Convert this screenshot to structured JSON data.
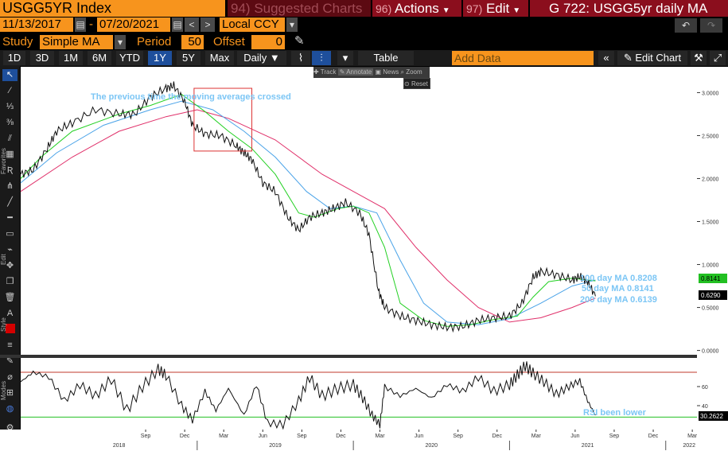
{
  "header": {
    "ticker": "USGG5YR Index",
    "suggested_num": "94)",
    "suggested_label": "Suggested Charts",
    "actions_num": "96)",
    "actions_label": "Actions",
    "edit_num": "97)",
    "edit_label": "Edit",
    "chart_title": "G 722: USGG5yr daily MA"
  },
  "date_range": {
    "start": "11/13/2017",
    "end": "07/20/2021",
    "currency": "Local CCY"
  },
  "study": {
    "label": "Study",
    "value": "Simple MA",
    "period_label": "Period",
    "period": "50",
    "offset_label": "Offset",
    "offset": "0"
  },
  "range_buttons": [
    "1D",
    "3D",
    "1M",
    "6M",
    "YTD",
    "1Y",
    "5Y",
    "Max"
  ],
  "active_range": "1Y",
  "frequency": "Daily",
  "table_label": "Table",
  "add_data_placeholder": "Add Data",
  "edit_chart_label": "Edit Chart",
  "mini_tools": {
    "track": "Track",
    "annotate": "Annotate",
    "news": "News",
    "zoom": "Zoom",
    "reset": "Reset"
  },
  "side_labels": {
    "favorites": "Favorites",
    "edit": "Edit",
    "style": "Style",
    "modes": "Modes"
  },
  "colors": {
    "price": "#ffffff",
    "ma50": "#22d022",
    "ma100": "#4aa3e8",
    "ma200": "#e0306a",
    "rsi": "#ffffff",
    "rsi_upper": "#c0392b",
    "rsi_lower": "#22c022",
    "annotation": "#7cc6f5",
    "box": "#d33"
  },
  "chart_data": [
    {
      "type": "line",
      "x_ticks": [
        "Sep",
        "Dec",
        "Mar",
        "Jun",
        "Sep",
        "Dec",
        "Mar",
        "Jun",
        "Sep",
        "Dec",
        "Mar",
        "Jun",
        "Sep",
        "Dec",
        "Mar"
      ],
      "x_years": [
        "2018",
        "2019",
        "2020",
        "2021",
        "2022"
      ],
      "y_ticks": [
        "3.0000",
        "2.5000",
        "2.0000",
        "1.5000",
        "1.0000",
        "0.5000",
        "0.0000"
      ],
      "ylim": [
        -0.05,
        3.3
      ],
      "series": [
        {
          "name": "USGG5YR",
          "last_value": "0.6290",
          "points": [
            [
              2017.87,
              2.05
            ],
            [
              2017.95,
              2.1
            ],
            [
              2018.04,
              2.35
            ],
            [
              2018.1,
              2.55
            ],
            [
              2018.2,
              2.65
            ],
            [
              2018.35,
              2.8
            ],
            [
              2018.5,
              2.75
            ],
            [
              2018.6,
              2.75
            ],
            [
              2018.7,
              2.95
            ],
            [
              2018.8,
              3.05
            ],
            [
              2018.85,
              3.08
            ],
            [
              2018.92,
              2.9
            ],
            [
              2018.97,
              2.62
            ],
            [
              2019.05,
              2.52
            ],
            [
              2019.15,
              2.5
            ],
            [
              2019.25,
              2.38
            ],
            [
              2019.3,
              2.3
            ],
            [
              2019.35,
              2.22
            ],
            [
              2019.42,
              1.95
            ],
            [
              2019.5,
              1.85
            ],
            [
              2019.58,
              1.55
            ],
            [
              2019.65,
              1.4
            ],
            [
              2019.72,
              1.55
            ],
            [
              2019.8,
              1.6
            ],
            [
              2019.87,
              1.65
            ],
            [
              2019.95,
              1.72
            ],
            [
              2020.04,
              1.6
            ],
            [
              2020.1,
              1.35
            ],
            [
              2020.16,
              0.7
            ],
            [
              2020.2,
              0.5
            ],
            [
              2020.3,
              0.4
            ],
            [
              2020.4,
              0.35
            ],
            [
              2020.5,
              0.3
            ],
            [
              2020.6,
              0.27
            ],
            [
              2020.7,
              0.28
            ],
            [
              2020.8,
              0.35
            ],
            [
              2020.9,
              0.38
            ],
            [
              2021.0,
              0.4
            ],
            [
              2021.08,
              0.55
            ],
            [
              2021.15,
              0.85
            ],
            [
              2021.2,
              0.92
            ],
            [
              2021.3,
              0.88
            ],
            [
              2021.4,
              0.82
            ],
            [
              2021.45,
              0.86
            ],
            [
              2021.5,
              0.8
            ],
            [
              2021.55,
              0.63
            ]
          ]
        },
        {
          "name": "50 day MA",
          "last_value": "0.8141",
          "points": [
            [
              2017.87,
              2.0
            ],
            [
              2018.0,
              2.25
            ],
            [
              2018.2,
              2.55
            ],
            [
              2018.5,
              2.75
            ],
            [
              2018.7,
              2.85
            ],
            [
              2018.9,
              2.98
            ],
            [
              2019.05,
              2.78
            ],
            [
              2019.2,
              2.55
            ],
            [
              2019.35,
              2.35
            ],
            [
              2019.5,
              2.05
            ],
            [
              2019.65,
              1.6
            ],
            [
              2019.75,
              1.55
            ],
            [
              2019.9,
              1.65
            ],
            [
              2020.0,
              1.68
            ],
            [
              2020.1,
              1.6
            ],
            [
              2020.2,
              1.2
            ],
            [
              2020.3,
              0.55
            ],
            [
              2020.45,
              0.35
            ],
            [
              2020.6,
              0.28
            ],
            [
              2020.75,
              0.3
            ],
            [
              2020.9,
              0.36
            ],
            [
              2021.05,
              0.4
            ],
            [
              2021.15,
              0.62
            ],
            [
              2021.25,
              0.8
            ],
            [
              2021.4,
              0.84
            ],
            [
              2021.55,
              0.81
            ]
          ]
        },
        {
          "name": "100 day MA",
          "last_value": "0.8208",
          "points": [
            [
              2017.87,
              1.95
            ],
            [
              2018.1,
              2.3
            ],
            [
              2018.4,
              2.62
            ],
            [
              2018.7,
              2.8
            ],
            [
              2018.9,
              2.9
            ],
            [
              2019.1,
              2.8
            ],
            [
              2019.3,
              2.55
            ],
            [
              2019.5,
              2.25
            ],
            [
              2019.7,
              1.85
            ],
            [
              2019.85,
              1.65
            ],
            [
              2020.0,
              1.68
            ],
            [
              2020.15,
              1.6
            ],
            [
              2020.3,
              1.05
            ],
            [
              2020.45,
              0.55
            ],
            [
              2020.6,
              0.33
            ],
            [
              2020.8,
              0.3
            ],
            [
              2021.0,
              0.37
            ],
            [
              2021.2,
              0.55
            ],
            [
              2021.4,
              0.75
            ],
            [
              2021.55,
              0.82
            ]
          ]
        },
        {
          "name": "200 day MA",
          "last_value": "0.6139",
          "points": [
            [
              2017.87,
              1.85
            ],
            [
              2018.2,
              2.25
            ],
            [
              2018.5,
              2.55
            ],
            [
              2018.8,
              2.72
            ],
            [
              2019.0,
              2.8
            ],
            [
              2019.2,
              2.7
            ],
            [
              2019.5,
              2.45
            ],
            [
              2019.8,
              2.05
            ],
            [
              2020.0,
              1.85
            ],
            [
              2020.2,
              1.65
            ],
            [
              2020.4,
              1.2
            ],
            [
              2020.6,
              0.82
            ],
            [
              2020.8,
              0.5
            ],
            [
              2021.0,
              0.33
            ],
            [
              2021.2,
              0.38
            ],
            [
              2021.4,
              0.5
            ],
            [
              2021.55,
              0.61
            ]
          ]
        }
      ],
      "annotations": [
        "The previous time the moving averages crossed",
        "100 day MA 0.8208",
        "50 day MA 0.8141",
        "200 day MA 0.6139"
      ]
    },
    {
      "type": "line",
      "y_ticks": [
        "60",
        "40"
      ],
      "ylim": [
        15,
        90
      ],
      "series": [
        {
          "name": "RSI",
          "last_value": "30.2622",
          "points": [
            [
              2017.87,
              65
            ],
            [
              2017.95,
              75
            ],
            [
              2018.05,
              70
            ],
            [
              2018.15,
              45
            ],
            [
              2018.25,
              62
            ],
            [
              2018.35,
              50
            ],
            [
              2018.45,
              68
            ],
            [
              2018.55,
              35
            ],
            [
              2018.65,
              60
            ],
            [
              2018.75,
              78
            ],
            [
              2018.8,
              72
            ],
            [
              2018.9,
              40
            ],
            [
              2018.97,
              25
            ],
            [
              2019.05,
              55
            ],
            [
              2019.12,
              35
            ],
            [
              2019.2,
              58
            ],
            [
              2019.3,
              30
            ],
            [
              2019.38,
              62
            ],
            [
              2019.45,
              22
            ],
            [
              2019.55,
              20
            ],
            [
              2019.65,
              45
            ],
            [
              2019.72,
              70
            ],
            [
              2019.8,
              50
            ],
            [
              2019.9,
              58
            ],
            [
              2020.0,
              62
            ],
            [
              2020.06,
              48
            ],
            [
              2020.12,
              30
            ],
            [
              2020.17,
              20
            ],
            [
              2020.2,
              60
            ],
            [
              2020.3,
              50
            ],
            [
              2020.4,
              58
            ],
            [
              2020.5,
              48
            ],
            [
              2020.6,
              62
            ],
            [
              2020.7,
              55
            ],
            [
              2020.8,
              70
            ],
            [
              2020.9,
              55
            ],
            [
              2021.0,
              62
            ],
            [
              2021.05,
              72
            ],
            [
              2021.1,
              82
            ],
            [
              2021.15,
              74
            ],
            [
              2021.22,
              65
            ],
            [
              2021.3,
              52
            ],
            [
              2021.38,
              60
            ],
            [
              2021.45,
              66
            ],
            [
              2021.5,
              45
            ],
            [
              2021.55,
              30
            ]
          ]
        }
      ],
      "reference_lines": [
        75,
        28
      ],
      "annotations": [
        "RSI been lower"
      ]
    }
  ]
}
